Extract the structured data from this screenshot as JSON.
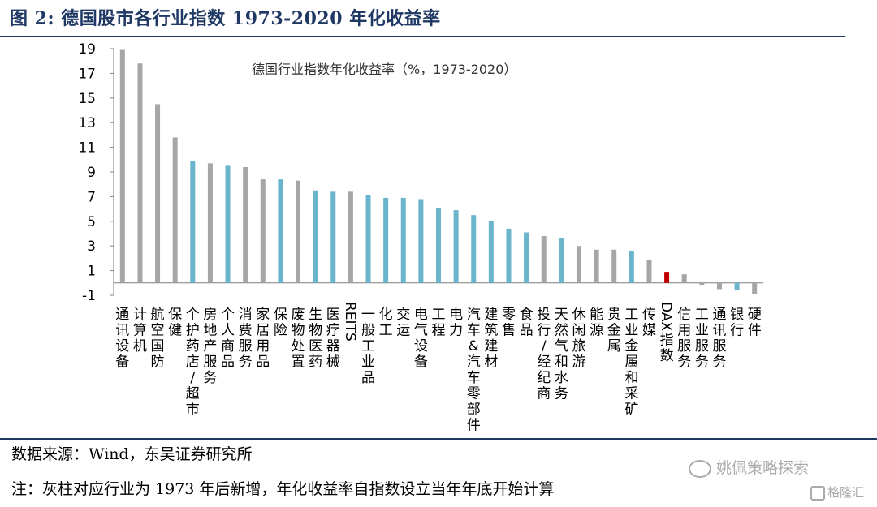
{
  "figure": {
    "title": "图 2:  德国股市各行业指数 1973-2020 年化收益率"
  },
  "footer": {
    "source": "数据来源：Wind，东吴证券研究所",
    "note": "注：灰柱对应行业为 1973 年后新增，年化收益率自指数设立当年年底开始计算"
  },
  "watermark": {
    "text": "姚佩策略探索",
    "icon": "wechat-icon",
    "logo_text": "格隆汇",
    "logo_icon": "gelonghui-logo-icon"
  },
  "colors": {
    "teal": "#6ab4cc",
    "gray": "#a6a6a6",
    "red": "#c00000",
    "title_blue": "#1f3864"
  },
  "chart_data": {
    "type": "bar",
    "title": "德国行业指数年化收益率（%，1973-2020）",
    "xlabel": "",
    "ylabel": "",
    "ylim": [
      -1,
      19
    ],
    "yticks": [
      19,
      17,
      15,
      13,
      11,
      9,
      7,
      5,
      3,
      1,
      -1
    ],
    "grid": false,
    "legend": "none",
    "categories": [
      "通讯设备",
      "计算机",
      "航空国防",
      "保健",
      "个护药店/超市",
      "房地产服务",
      "个人商品",
      "消费服务",
      "家居用品",
      "保险",
      "废物处置",
      "生物医药",
      "医疗器械",
      "REITS",
      "一般工业品",
      "化工",
      "交运",
      "电气设备",
      "工程",
      "电力",
      "汽车&汽车零部件",
      "建筑建材",
      "零售",
      "食品",
      "投行/经纪商",
      "天然气和水务",
      "休闲旅游",
      "能源",
      "贵金属",
      "工业金属和采矿",
      "传媒",
      "DAX指数",
      "信用服务",
      "工业服务",
      "通讯服务",
      "银行",
      "硬件"
    ],
    "values": [
      18.9,
      17.8,
      14.5,
      11.8,
      9.9,
      9.7,
      9.5,
      9.4,
      8.4,
      8.4,
      8.3,
      7.5,
      7.4,
      7.4,
      7.1,
      6.9,
      6.9,
      6.8,
      6.1,
      5.9,
      5.5,
      5.0,
      4.4,
      4.1,
      3.8,
      3.6,
      3.0,
      2.7,
      2.7,
      2.6,
      1.9,
      0.9,
      0.7,
      -0.15,
      -0.5,
      -0.6,
      -0.9
    ],
    "bar_colors": [
      "gray",
      "gray",
      "gray",
      "gray",
      "teal",
      "gray",
      "teal",
      "gray",
      "gray",
      "teal",
      "gray",
      "teal",
      "teal",
      "gray",
      "teal",
      "teal",
      "teal",
      "teal",
      "teal",
      "teal",
      "teal",
      "teal",
      "teal",
      "teal",
      "gray",
      "teal",
      "gray",
      "gray",
      "gray",
      "teal",
      "gray",
      "red",
      "gray",
      "gray",
      "gray",
      "teal",
      "gray"
    ],
    "rotated_categories": [
      "REITS",
      "DAX指数"
    ]
  }
}
